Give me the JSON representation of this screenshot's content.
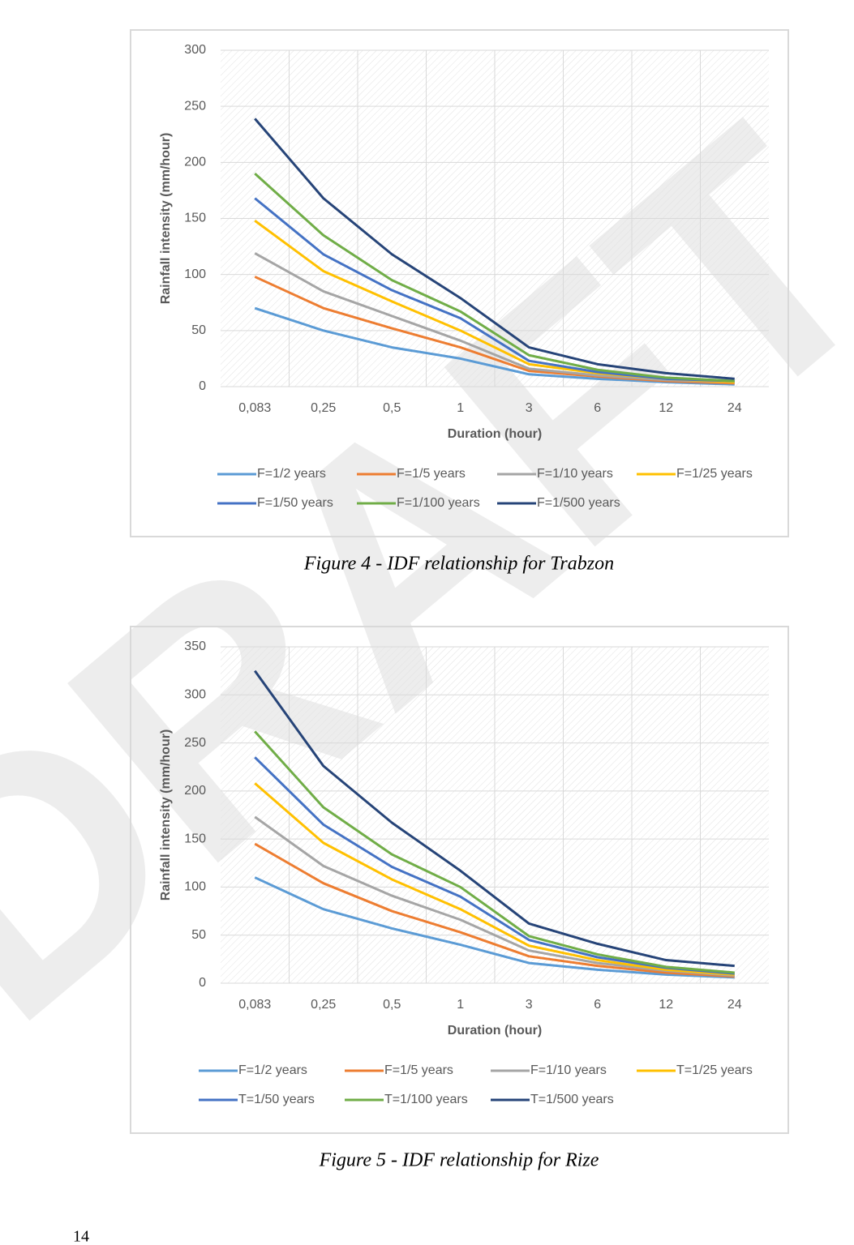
{
  "watermark": "DRAFT",
  "chart_data": [
    {
      "type": "line",
      "ylabel": "Rainfall intensity (mm/hour)",
      "xlabel": "Duration (hour)",
      "categories": [
        "0,083",
        "0,25",
        "0,5",
        "1",
        "3",
        "6",
        "12",
        "24"
      ],
      "ylim": [
        0,
        300
      ],
      "yticks": [
        0,
        50,
        100,
        150,
        200,
        250,
        300
      ],
      "grid": true,
      "legend": "bottom",
      "series": [
        {
          "name": "F=1/2 years",
          "color": "#5b9bd5",
          "values": [
            70,
            50,
            35,
            25,
            11,
            7,
            4,
            2
          ]
        },
        {
          "name": "F=1/5 years",
          "color": "#ed7d31",
          "values": [
            98,
            70,
            52,
            35,
            14,
            9,
            5,
            3
          ]
        },
        {
          "name": "F=1/10 years",
          "color": "#a5a5a5",
          "values": [
            119,
            85,
            63,
            41,
            16,
            10,
            6,
            4
          ]
        },
        {
          "name": "F=1/25 years",
          "color": "#ffc000",
          "values": [
            148,
            103,
            76,
            50,
            20,
            12,
            7,
            4
          ]
        },
        {
          "name": "F=1/50 years",
          "color": "#4472c4",
          "values": [
            168,
            118,
            86,
            61,
            23,
            13,
            7,
            5
          ]
        },
        {
          "name": "F=1/100 years",
          "color": "#70ad47",
          "values": [
            190,
            135,
            95,
            67,
            28,
            15,
            8,
            5
          ]
        },
        {
          "name": "F=1/500 years",
          "color": "#264478",
          "values": [
            239,
            168,
            118,
            79,
            35,
            20,
            12,
            7
          ]
        }
      ]
    },
    {
      "type": "line",
      "ylabel": "Rainfall intensity (mm/hour)",
      "xlabel": "Duration (hour)",
      "categories": [
        "0,083",
        "0,25",
        "0,5",
        "1",
        "3",
        "6",
        "12",
        "24"
      ],
      "ylim": [
        0,
        350
      ],
      "yticks": [
        0,
        50,
        100,
        150,
        200,
        250,
        300,
        350
      ],
      "grid": true,
      "legend": "bottom",
      "series": [
        {
          "name": "F=1/2 years",
          "color": "#5b9bd5",
          "values": [
            110,
            77,
            57,
            40,
            21,
            14,
            9,
            6
          ]
        },
        {
          "name": "F=1/5 years",
          "color": "#ed7d31",
          "values": [
            145,
            104,
            75,
            53,
            28,
            18,
            11,
            7
          ]
        },
        {
          "name": "F=1/10 years",
          "color": "#a5a5a5",
          "values": [
            173,
            122,
            91,
            66,
            34,
            21,
            13,
            8
          ]
        },
        {
          "name": "T=1/25 years",
          "color": "#ffc000",
          "values": [
            208,
            146,
            108,
            77,
            39,
            24,
            14,
            9
          ]
        },
        {
          "name": "T=1/50 years",
          "color": "#4472c4",
          "values": [
            235,
            165,
            121,
            90,
            45,
            27,
            16,
            10
          ]
        },
        {
          "name": "T=1/100 years",
          "color": "#70ad47",
          "values": [
            262,
            183,
            134,
            100,
            49,
            30,
            17,
            11
          ]
        },
        {
          "name": "T=1/500 years",
          "color": "#264478",
          "values": [
            325,
            226,
            167,
            117,
            62,
            41,
            24,
            18
          ]
        }
      ]
    }
  ],
  "captions": [
    "Figure 4 - IDF relationship for Trabzon",
    "Figure 5 - IDF relationship for Rize"
  ],
  "page_number": "14"
}
